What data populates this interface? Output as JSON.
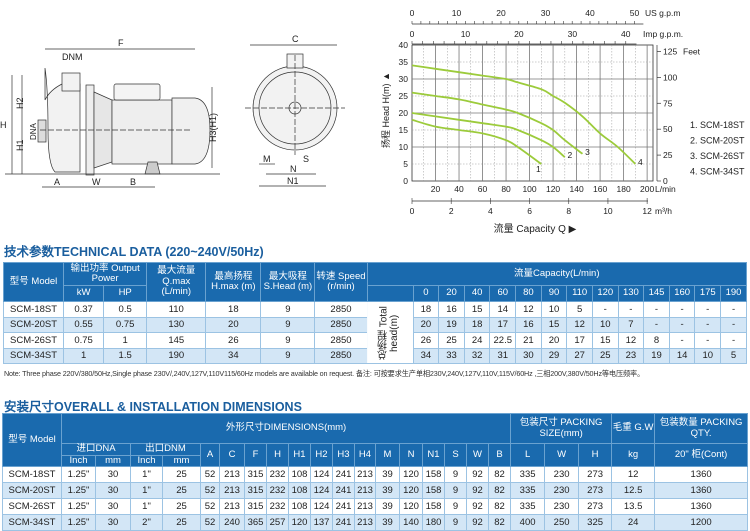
{
  "drawings": {
    "labels": {
      "F": "F",
      "DNM": "DNM",
      "H": "H",
      "H2": "H2",
      "H1": "H1",
      "DNA": "DNA",
      "H3": "H3(H1)",
      "A": "A",
      "W": "W",
      "B": "B",
      "C": "C",
      "M": "M",
      "S": "S",
      "N": "N",
      "N1": "N1"
    }
  },
  "chart_data": {
    "type": "line",
    "ylabel": "扬程 Head H(m) ▲",
    "xlabel": "流量 Capacity Q ▶",
    "xlim": [
      0,
      205
    ],
    "ylim": [
      0,
      40
    ],
    "x_unit": "L/min",
    "x_ticks": [
      20,
      40,
      60,
      80,
      100,
      120,
      140,
      160,
      180,
      200
    ],
    "y_ticks": [
      0,
      5,
      10,
      15,
      20,
      25,
      30,
      35,
      40
    ],
    "us_gpm": {
      "label": "US g.p.m",
      "ticks": [
        0,
        10,
        20,
        30,
        40,
        50
      ]
    },
    "imp_gpm": {
      "label": "Imp g.p.m.",
      "ticks": [
        0,
        10,
        20,
        30,
        40
      ]
    },
    "feet": {
      "label": "Feet",
      "ticks": [
        0,
        25,
        50,
        75,
        100,
        125
      ]
    },
    "m3h": {
      "label": "m³/h",
      "ticks": [
        0,
        2,
        4,
        6,
        8,
        10,
        12
      ]
    },
    "grid": true,
    "color": "#9ccb3b",
    "legend_placement": "right",
    "series": [
      {
        "name": "1. SCM-18ST",
        "tag": "1",
        "x": [
          0,
          20,
          40,
          60,
          80,
          90,
          110
        ],
        "y": [
          18,
          16,
          15,
          14,
          12,
          10,
          5
        ]
      },
      {
        "name": "2. SCM-20ST",
        "tag": "2",
        "x": [
          0,
          20,
          40,
          60,
          80,
          90,
          110,
          120,
          130
        ],
        "y": [
          20,
          19,
          18,
          17,
          16,
          15,
          12,
          10,
          7
        ]
      },
      {
        "name": "3. SCM-26ST",
        "tag": "3",
        "x": [
          0,
          20,
          40,
          60,
          80,
          90,
          110,
          120,
          130,
          145
        ],
        "y": [
          26,
          25,
          24,
          22.5,
          21,
          20,
          17,
          15,
          12,
          8
        ]
      },
      {
        "name": "4. SCM-34ST",
        "tag": "4",
        "x": [
          0,
          20,
          40,
          60,
          80,
          90,
          110,
          120,
          130,
          145,
          160,
          175,
          190
        ],
        "y": [
          34,
          33,
          32,
          31,
          30,
          29,
          27,
          25,
          23,
          19,
          14,
          10,
          5
        ]
      }
    ]
  },
  "tech": {
    "title": "技术参数TECHNICAL DATA (220~240V/50Hz)",
    "h_model": "型号 Model",
    "h_power": "输出功率 Output Power",
    "h_kw": "kW",
    "h_hp": "HP",
    "h_q": "最大流量 Q.max (L/min)",
    "h_h": "最高扬程 H.max (m)",
    "h_s": "最大吸程 S.Head (m)",
    "h_speed": "转速 Speed (r/min)",
    "h_capacity": "流量Capacity(L/min)",
    "total_head": "总扬程 Total head(m)",
    "capacities": [
      "0",
      "20",
      "40",
      "60",
      "80",
      "90",
      "110",
      "120",
      "130",
      "145",
      "160",
      "175",
      "190"
    ],
    "rows": [
      {
        "model": "SCM-18ST",
        "kw": "0.37",
        "hp": "0.5",
        "q": "110",
        "h": "18",
        "s": "9",
        "speed": "2850",
        "heads": [
          "18",
          "16",
          "15",
          "14",
          "12",
          "10",
          "5",
          "-",
          "-",
          "-",
          "-",
          "-",
          "-"
        ]
      },
      {
        "model": "SCM-20ST",
        "kw": "0.55",
        "hp": "0.75",
        "q": "130",
        "h": "20",
        "s": "9",
        "speed": "2850",
        "heads": [
          "20",
          "19",
          "18",
          "17",
          "16",
          "15",
          "12",
          "10",
          "7",
          "-",
          "-",
          "-",
          "-"
        ]
      },
      {
        "model": "SCM-26ST",
        "kw": "0.75",
        "hp": "1",
        "q": "145",
        "h": "26",
        "s": "9",
        "speed": "2850",
        "heads": [
          "26",
          "25",
          "24",
          "22.5",
          "21",
          "20",
          "17",
          "15",
          "12",
          "8",
          "-",
          "-",
          "-"
        ]
      },
      {
        "model": "SCM-34ST",
        "kw": "1",
        "hp": "1.5",
        "q": "190",
        "h": "34",
        "s": "9",
        "speed": "2850",
        "heads": [
          "34",
          "33",
          "32",
          "31",
          "30",
          "29",
          "27",
          "25",
          "23",
          "19",
          "14",
          "10",
          "5"
        ]
      }
    ],
    "note": "Note: Three phase 220V/380/50Hz,Single phase 230V/,240V,127V,110V115/60Hz models are available on request. 备注: 可按要求生产单相230V,240V,127V,110V,115V/60Hz ,三相200V,380V/50Hz等电压频率。"
  },
  "dims": {
    "title": "安装尺寸OVERALL & INSTALLATION DIMENSIONS",
    "h_model": "型号 Model",
    "h_dimensions": "外形尺寸DIMENSIONS(mm)",
    "h_packing": "包装尺寸 PACKING SIZE(mm)",
    "h_gw": "毛重 G.W",
    "h_qty": "包装数量 PACKING QTY.",
    "h_dna": "进口DNA",
    "h_dnm": "出口DNM",
    "h_inch": "Inch",
    "h_mm": "mm",
    "dim_cols": [
      "A",
      "C",
      "F",
      "H",
      "H1",
      "H2",
      "H3",
      "H4",
      "M",
      "N",
      "N1",
      "S",
      "W",
      "B"
    ],
    "pack_cols": [
      "L",
      "W",
      "H"
    ],
    "h_kg": "kg",
    "h_cont": "20\" 柜(Cont)",
    "rows": [
      {
        "model": "SCM-18ST",
        "vals": [
          "1.25\"",
          "30",
          "1\"",
          "25",
          "52",
          "213",
          "315",
          "232",
          "108",
          "124",
          "241",
          "213",
          "39",
          "120",
          "158",
          "9",
          "92",
          "82",
          "335",
          "230",
          "273",
          "12",
          "1360"
        ]
      },
      {
        "model": "SCM-20ST",
        "vals": [
          "1.25\"",
          "30",
          "1\"",
          "25",
          "52",
          "213",
          "315",
          "232",
          "108",
          "124",
          "241",
          "213",
          "39",
          "120",
          "158",
          "9",
          "92",
          "82",
          "335",
          "230",
          "273",
          "12.5",
          "1360"
        ]
      },
      {
        "model": "SCM-26ST",
        "vals": [
          "1.25\"",
          "30",
          "1\"",
          "25",
          "52",
          "213",
          "315",
          "232",
          "108",
          "124",
          "241",
          "213",
          "39",
          "120",
          "158",
          "9",
          "92",
          "82",
          "335",
          "230",
          "273",
          "13.5",
          "1360"
        ]
      },
      {
        "model": "SCM-34ST",
        "vals": [
          "1.25\"",
          "30",
          "2\"",
          "25",
          "52",
          "240",
          "365",
          "257",
          "120",
          "137",
          "241",
          "213",
          "39",
          "140",
          "180",
          "9",
          "92",
          "82",
          "400",
          "250",
          "325",
          "24",
          "1200"
        ]
      }
    ]
  }
}
